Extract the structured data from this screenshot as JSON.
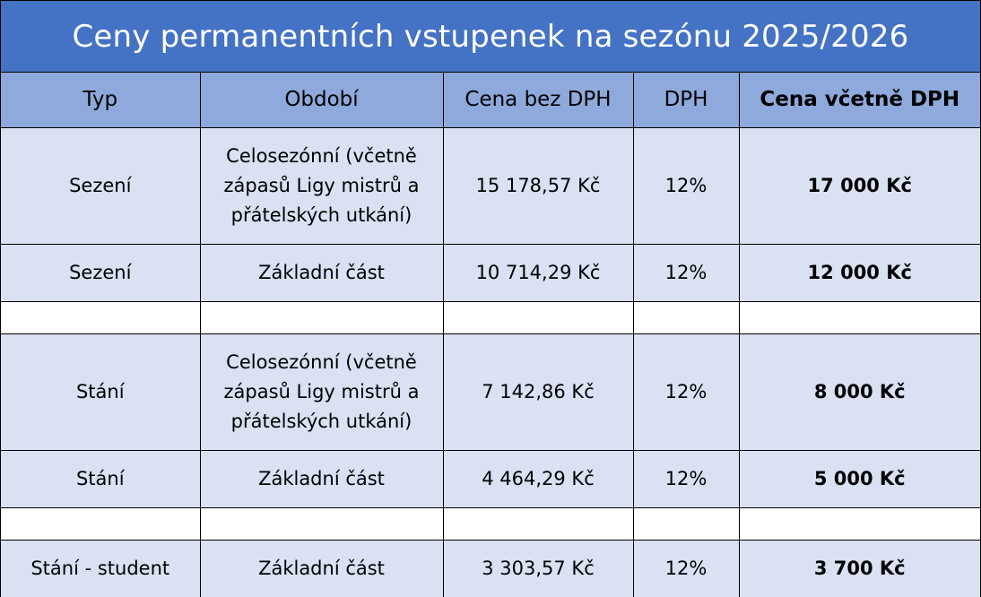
{
  "title": "Ceny permanentních vstupenek na sezónu 2025/2026",
  "headers": {
    "typ": "Typ",
    "obdobi": "Období",
    "cena_bez_dph": "Cena bez DPH",
    "dph": "DPH",
    "cena_vcetne_dph": "Cena včetně DPH"
  },
  "rows": [
    {
      "typ": "Sezení",
      "obdobi": "Celosezónní (včetně zápasů Ligy mistrů a přátelských utkání)",
      "cena_bez_dph": "15 178,57 Kč",
      "dph": "12%",
      "cena_vcetne_dph": "17 000 Kč"
    },
    {
      "typ": "Sezení",
      "obdobi": "Základní část",
      "cena_bez_dph": "10 714,29 Kč",
      "dph": "12%",
      "cena_vcetne_dph": "12 000 Kč"
    },
    {
      "typ": "Stání",
      "obdobi": "Celosezónní (včetně zápasů Ligy mistrů a přátelských utkání)",
      "cena_bez_dph": "7 142,86 Kč",
      "dph": "12%",
      "cena_vcetne_dph": "8 000 Kč"
    },
    {
      "typ": "Stání",
      "obdobi": "Základní část",
      "cena_bez_dph": "4 464,29 Kč",
      "dph": "12%",
      "cena_vcetne_dph": "5 000 Kč"
    },
    {
      "typ": "Stání - student",
      "obdobi": "Základní část",
      "cena_bez_dph": "3 303,57 Kč",
      "dph": "12%",
      "cena_vcetne_dph": "3 700 Kč"
    }
  ],
  "colors": {
    "title_bg": "#4472C4",
    "header_bg": "#8EA9DB",
    "row_bg": "#D9E1F2",
    "gap_bg": "#FFFFFF"
  }
}
